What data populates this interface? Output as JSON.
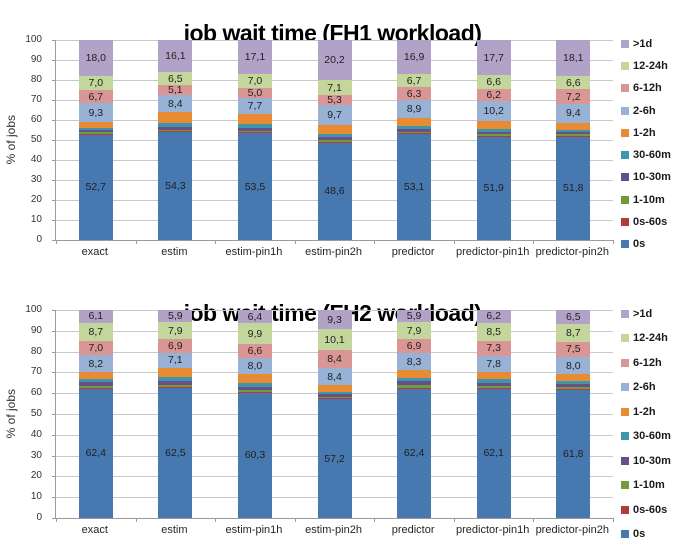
{
  "page": {
    "background": "#ffffff"
  },
  "styles": {
    "grid_color": "#c9c9c9",
    "axis_color": "#9b9b9b",
    "title_color": "#000000",
    "label_color": "#1f1f1f"
  },
  "decimal_separator": ",",
  "chart_data": [
    {
      "type": "bar",
      "stacked": true,
      "title": "job wait time (FH1 workload)",
      "ylabel": "% of jobs",
      "ylim": [
        0,
        100
      ],
      "yticks": [
        0,
        10,
        20,
        30,
        40,
        50,
        60,
        70,
        80,
        90,
        100
      ],
      "grid": true,
      "legend_position": "right",
      "legend_order_top_to_bottom": [
        ">1d",
        "12-24h",
        "6-12h",
        "2-6h",
        "1-2h",
        "30-60m",
        "10-30m",
        "1-10m",
        "0s-60s",
        "0s"
      ],
      "categories": [
        "exact",
        "estim",
        "estim-pin1h",
        "estim-pin2h",
        "predictor",
        "predictor-pin1h",
        "predictor-pin2h"
      ],
      "series": [
        {
          "name": "0s",
          "color": "#4878b0",
          "labeled": true,
          "values": [
            52.7,
            54.3,
            53.5,
            48.6,
            53.1,
            51.9,
            51.8
          ]
        },
        {
          "name": "0s-60s",
          "color": "#ae3e39",
          "labeled": false,
          "values": [
            0.3,
            0.3,
            0.3,
            0.5,
            0.3,
            0.3,
            0.3
          ]
        },
        {
          "name": "1-10m",
          "color": "#759a3e",
          "labeled": false,
          "values": [
            0.9,
            0.5,
            0.8,
            1.0,
            0.8,
            0.8,
            0.7
          ]
        },
        {
          "name": "10-30m",
          "color": "#675089",
          "labeled": false,
          "values": [
            0.9,
            1.5,
            1.2,
            1.4,
            1.3,
            1.0,
            1.0
          ]
        },
        {
          "name": "30-60m",
          "color": "#3d95ae",
          "labeled": false,
          "values": [
            1.2,
            2.0,
            2.2,
            1.7,
            1.5,
            1.3,
            1.3
          ]
        },
        {
          "name": "1-2h",
          "color": "#e88b33",
          "labeled": false,
          "values": [
            3.0,
            5.3,
            5.2,
            4.5,
            4.2,
            4.0,
            3.6
          ]
        },
        {
          "name": "2-6h",
          "color": "#98b2d6",
          "labeled": true,
          "values": [
            9.3,
            8.4,
            7.7,
            9.7,
            8.9,
            10.2,
            9.4
          ]
        },
        {
          "name": "6-12h",
          "color": "#d99694",
          "labeled": true,
          "values": [
            6.7,
            5.1,
            5.0,
            5.3,
            6.3,
            6.2,
            7.2
          ]
        },
        {
          "name": "12-24h",
          "color": "#c3d69b",
          "labeled": true,
          "values": [
            7.0,
            6.5,
            7.0,
            7.1,
            6.7,
            6.6,
            6.6
          ]
        },
        {
          "name": ">1d",
          "color": "#b3a2c7",
          "labeled": true,
          "values": [
            18.0,
            16.1,
            17.1,
            20.2,
            16.9,
            17.7,
            18.1
          ]
        }
      ]
    },
    {
      "type": "bar",
      "stacked": true,
      "title": "job wait time (FH2 workload)",
      "ylabel": "% of jobs",
      "ylim": [
        0,
        100
      ],
      "yticks": [
        0,
        10,
        20,
        30,
        40,
        50,
        60,
        70,
        80,
        90,
        100
      ],
      "grid": true,
      "legend_position": "right",
      "legend_order_top_to_bottom": [
        ">1d",
        "12-24h",
        "6-12h",
        "2-6h",
        "1-2h",
        "30-60m",
        "10-30m",
        "1-10m",
        "0s-60s",
        "0s"
      ],
      "categories": [
        "exact",
        "estim",
        "estim-pin1h",
        "estim-pin2h",
        "predictor",
        "predictor-pin1h",
        "predictor-pin2h"
      ],
      "series": [
        {
          "name": "0s",
          "color": "#4878b0",
          "labeled": true,
          "values": [
            62.4,
            62.5,
            60.3,
            57.2,
            62.4,
            62.1,
            61.8
          ]
        },
        {
          "name": "0s-60s",
          "color": "#ae3e39",
          "labeled": false,
          "values": [
            0.2,
            0.3,
            0.3,
            0.5,
            0.3,
            0.3,
            0.3
          ]
        },
        {
          "name": "1-10m",
          "color": "#759a3e",
          "labeled": false,
          "values": [
            1.0,
            1.1,
            0.9,
            0.6,
            1.2,
            1.0,
            1.0
          ]
        },
        {
          "name": "10-30m",
          "color": "#675089",
          "labeled": false,
          "values": [
            1.7,
            1.9,
            1.7,
            1.1,
            1.8,
            1.7,
            1.5
          ]
        },
        {
          "name": "30-60m",
          "color": "#3d95ae",
          "labeled": false,
          "values": [
            1.5,
            2.0,
            1.8,
            1.0,
            1.7,
            1.6,
            1.5
          ]
        },
        {
          "name": "1-2h",
          "color": "#e88b33",
          "labeled": false,
          "values": [
            3.2,
            4.4,
            4.1,
            3.4,
            3.6,
            3.5,
            3.2
          ]
        },
        {
          "name": "2-6h",
          "color": "#98b2d6",
          "labeled": true,
          "values": [
            8.2,
            7.1,
            8.0,
            8.4,
            8.3,
            7.8,
            8.0
          ]
        },
        {
          "name": "6-12h",
          "color": "#d99694",
          "labeled": true,
          "values": [
            7.0,
            6.9,
            6.6,
            8.4,
            6.9,
            7.3,
            7.5
          ]
        },
        {
          "name": "12-24h",
          "color": "#c3d69b",
          "labeled": true,
          "values": [
            8.7,
            7.9,
            9.9,
            10.1,
            7.9,
            8.5,
            8.7
          ]
        },
        {
          "name": ">1d",
          "color": "#b3a2c7",
          "labeled": true,
          "values": [
            6.1,
            5.9,
            6.4,
            9.3,
            5.9,
            6.2,
            6.5
          ]
        }
      ]
    }
  ]
}
